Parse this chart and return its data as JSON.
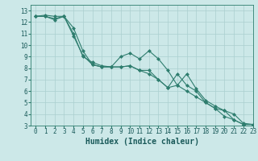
{
  "bg_color": "#cce8e8",
  "line_color": "#2e7d6e",
  "grid_color": "#aacfcf",
  "xlabel": "Humidex (Indice chaleur)",
  "xlim": [
    -0.5,
    23
  ],
  "ylim": [
    3,
    13.5
  ],
  "xticks": [
    0,
    1,
    2,
    3,
    4,
    5,
    6,
    7,
    8,
    9,
    10,
    11,
    12,
    13,
    14,
    15,
    16,
    17,
    18,
    19,
    20,
    21,
    22,
    23
  ],
  "yticks": [
    3,
    4,
    5,
    6,
    7,
    8,
    9,
    10,
    11,
    12,
    13
  ],
  "line1_x": [
    0,
    1,
    2,
    3,
    4,
    5,
    6,
    7,
    8,
    9,
    10,
    11,
    12,
    13,
    14,
    15,
    16,
    17,
    18,
    19,
    20,
    21,
    22,
    23
  ],
  "line1_y": [
    12.5,
    12.6,
    12.5,
    12.5,
    11.0,
    9.0,
    8.5,
    8.2,
    8.1,
    8.1,
    8.2,
    7.8,
    7.5,
    7.0,
    6.3,
    6.5,
    6.0,
    5.5,
    5.0,
    4.5,
    3.8,
    3.5,
    3.1,
    3.1
  ],
  "line2_x": [
    0,
    1,
    2,
    3,
    4,
    5,
    6,
    7,
    8,
    9,
    10,
    11,
    12,
    13,
    14,
    15,
    16,
    17,
    18,
    19,
    20,
    21,
    22,
    23
  ],
  "line2_y": [
    12.5,
    12.5,
    12.3,
    12.5,
    10.8,
    9.1,
    8.3,
    8.1,
    8.1,
    9.0,
    9.3,
    8.8,
    9.5,
    8.8,
    7.8,
    6.5,
    7.5,
    6.2,
    5.2,
    4.7,
    4.3,
    4.0,
    3.2,
    3.1
  ],
  "line3_x": [
    0,
    1,
    2,
    3,
    4,
    5,
    6,
    7,
    8,
    9,
    10,
    11,
    12,
    13,
    14,
    15,
    16,
    17,
    18,
    19,
    20,
    21,
    22,
    23
  ],
  "line3_y": [
    12.5,
    12.5,
    12.2,
    12.5,
    11.5,
    9.5,
    8.3,
    8.1,
    8.1,
    8.1,
    8.2,
    7.8,
    7.8,
    7.0,
    6.3,
    7.5,
    6.5,
    6.0,
    5.0,
    4.5,
    4.3,
    3.5,
    3.1,
    3.1
  ],
  "fontsize_label": 7,
  "fontsize_tick": 5.5
}
